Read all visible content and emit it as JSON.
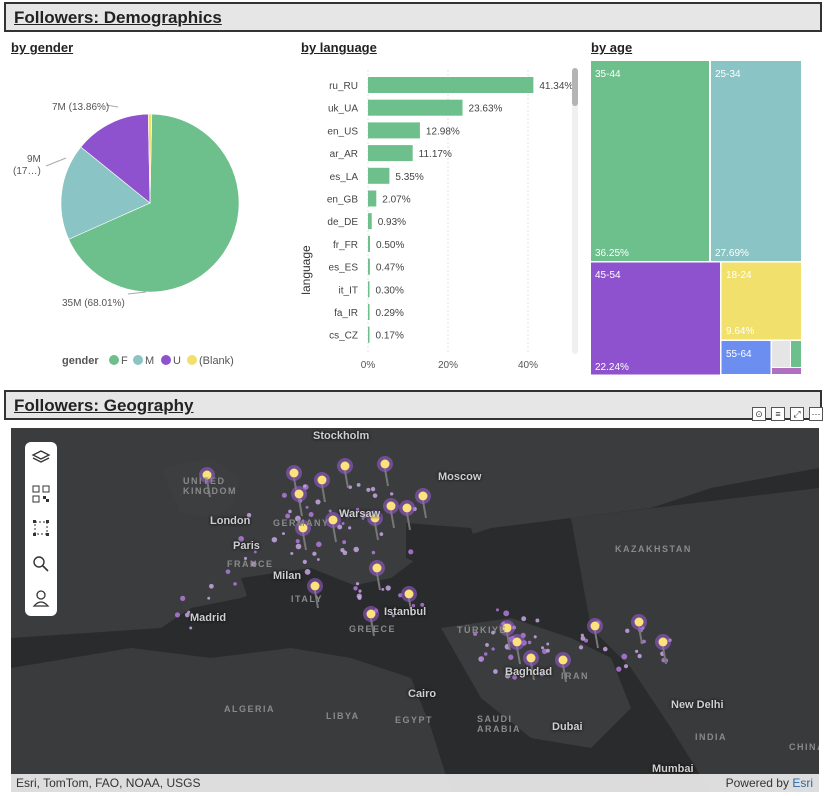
{
  "demographics": {
    "header": "Followers: Demographics",
    "gender": {
      "title": "by gender",
      "slice_labels": {
        "F": "35M (68.01%)",
        "M_line1": "9M",
        "M_line2": "(17…)",
        "U": "7M (13.86%)"
      },
      "legend": {
        "title": "gender",
        "items": [
          "F",
          "M",
          "U",
          "(Blank)"
        ]
      },
      "colors": {
        "F": "#6dbf8b",
        "M": "#8ac4c4",
        "U": "#8f52cf",
        "Blank": "#f1e06b"
      },
      "chart_data": {
        "type": "pie",
        "categories": [
          "F",
          "M",
          "U",
          "(Blank)"
        ],
        "values": [
          68.01,
          17.5,
          13.86,
          0.63
        ]
      }
    },
    "language": {
      "title": "by language",
      "ylabel": "language",
      "chart_data": {
        "type": "bar",
        "categories": [
          "ru_RU",
          "uk_UA",
          "en_US",
          "ar_AR",
          "es_LA",
          "en_GB",
          "de_DE",
          "fr_FR",
          "es_ES",
          "it_IT",
          "fa_IR",
          "cs_CZ"
        ],
        "values": [
          41.34,
          23.63,
          12.98,
          11.17,
          5.35,
          2.07,
          0.93,
          0.5,
          0.47,
          0.3,
          0.29,
          0.17
        ],
        "value_labels": [
          "41.34%",
          "23.63%",
          "12.98%",
          "11.17%",
          "5.35%",
          "2.07%",
          "0.93%",
          "0.50%",
          "0.47%",
          "0.30%",
          "0.29%",
          "0.17%"
        ],
        "xticks": [
          "0%",
          "20%",
          "40%"
        ],
        "xlim": [
          0,
          45
        ],
        "color": "#6dbf8b"
      }
    },
    "age": {
      "title": "by age",
      "chart_data": {
        "type": "treemap",
        "categories": [
          "35-44",
          "25-34",
          "45-54",
          "18-24",
          "55-64"
        ],
        "values": [
          36.25,
          27.69,
          22.24,
          9.64,
          3.0
        ],
        "value_labels": [
          "36.25%",
          "27.69%",
          "22.24%",
          "9.64%",
          ""
        ],
        "colors": [
          "#6dbf8b",
          "#8ac4c4",
          "#8f52cf",
          "#f1e06b",
          "#6b8ef0"
        ]
      }
    }
  },
  "geography": {
    "header": "Followers: Geography",
    "icons": [
      "pin-icon",
      "filter-icon",
      "expand-icon",
      "more-icon"
    ],
    "toolbar": [
      "layers-icon",
      "qr-icon",
      "select-area-icon",
      "search-icon",
      "person-icon"
    ],
    "cities": [
      "Stockholm",
      "Moscow",
      "London",
      "Warsaw",
      "Paris",
      "Milan",
      "Madrid",
      "Istanbul",
      "Baghdad",
      "Cairo",
      "Dubai",
      "New Delhi",
      "Mumbai"
    ],
    "regions": [
      "UNITED KINGDOM",
      "GERMANY",
      "FRANCE",
      "KAZAKHSTAN",
      "ITALY",
      "GREECE",
      "TÜRKIYE",
      "ALGERIA",
      "LIBYA",
      "EGYPT",
      "SAUDI ARABIA",
      "IRAN",
      "INDIA",
      "CHINA"
    ],
    "attribution": "Esri, TomTom, FAO, NOAA, USGS",
    "powered_by": "Powered by",
    "powered_by_brand": "Esri"
  }
}
